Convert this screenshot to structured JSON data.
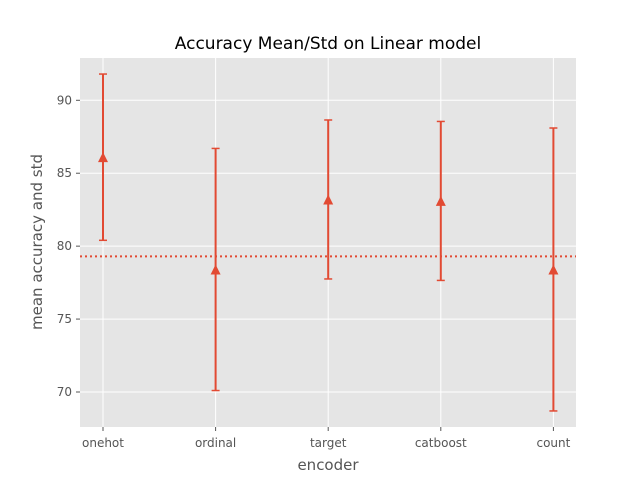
{
  "chart_data": {
    "type": "errorbar",
    "title": "Accuracy Mean/Std on Linear model",
    "xlabel": "encoder",
    "ylabel": "mean accuracy and std",
    "categories": [
      "onehot",
      "ordinal",
      "target",
      "catboost",
      "count"
    ],
    "means": [
      86.1,
      78.4,
      83.2,
      83.1,
      78.4
    ],
    "stds": [
      5.7,
      8.3,
      5.45,
      5.45,
      9.7
    ],
    "ylim": [
      67.6,
      92.9
    ],
    "yticks": [
      70,
      75,
      80,
      85,
      90
    ],
    "reference_line": {
      "value": 79.3,
      "style": "dotted"
    },
    "grid": true,
    "colors": {
      "series": "#E24A33",
      "plot_background": "#E5E5E5",
      "grid": "#FFFFFF",
      "text": "#555555"
    },
    "marker": "triangle-up-icon"
  }
}
